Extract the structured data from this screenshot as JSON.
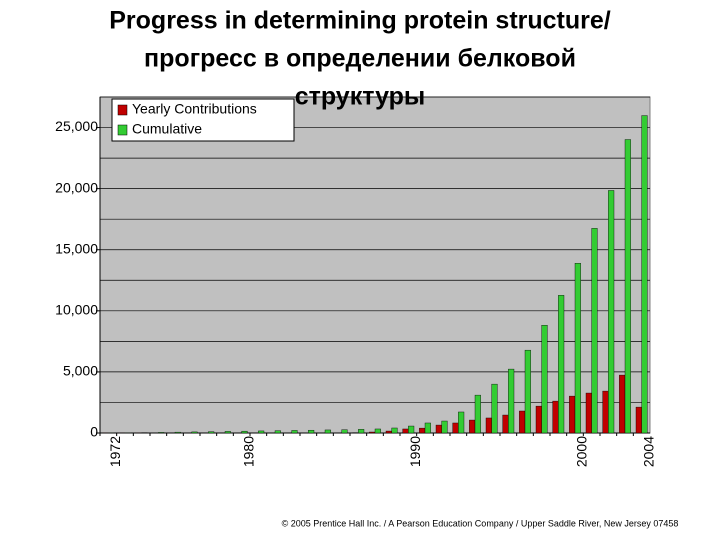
{
  "chart_data": {
    "type": "bar",
    "title_lines": [
      "Progress in determining protein structure/",
      "прогресс в определении белковой",
      "структуры"
    ],
    "source": "© 2005 Prentice Hall Inc. / A Pearson Education Company / Upper Saddle River, New Jersey 07458",
    "categories": [
      "1972",
      null,
      null,
      null,
      null,
      null,
      null,
      null,
      "1980",
      null,
      null,
      null,
      null,
      null,
      null,
      null,
      null,
      null,
      "1990",
      null,
      null,
      null,
      null,
      null,
      null,
      null,
      null,
      null,
      "2000",
      null,
      null,
      null,
      "2004"
    ],
    "series": [
      {
        "name": "Yearly Contributions",
        "color": "#c00000",
        "values": [
          10,
          5,
          15,
          20,
          20,
          20,
          20,
          20,
          20,
          20,
          20,
          20,
          20,
          20,
          20,
          30,
          80,
          160,
          330,
          400,
          650,
          820,
          1060,
          1230,
          1470,
          1800,
          2200,
          2610,
          3020,
          3270,
          3430,
          4740,
          2120
        ]
      },
      {
        "name": "Cumulative",
        "color": "#33cc33",
        "values": [
          10,
          15,
          30,
          50,
          70,
          90,
          110,
          130,
          150,
          170,
          190,
          210,
          230,
          250,
          270,
          300,
          330,
          410,
          570,
          820,
          980,
          1720,
          3100,
          4000,
          5230,
          6780,
          8820,
          11270,
          13890,
          16750,
          19850,
          24020,
          25980
        ]
      }
    ],
    "ylim": [
      0,
      27500
    ],
    "yticks": [
      0,
      {
        "value": 5000,
        "label": "5,000"
      },
      {
        "value": 10000,
        "label": "10,000"
      },
      {
        "value": 15000,
        "label": "15,000"
      },
      {
        "value": 20000,
        "label": "20,000"
      },
      {
        "value": 25000,
        "label": "25,000"
      }
    ],
    "minor_grid": [
      2500,
      7500,
      12500,
      17500,
      22500,
      27500
    ],
    "grid": true,
    "plot_background": "#c0c0c0",
    "legend": "upper left"
  }
}
